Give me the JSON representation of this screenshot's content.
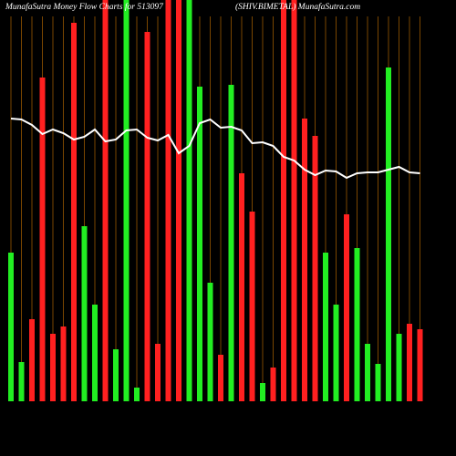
{
  "chart_data": {
    "type": "bar",
    "title": "MunafaSutra  Money Flow  Charts for 513097",
    "subtitle": "(SHIV.BIMETAL)  MunafaSutra.com",
    "ylim": [
      0,
      440
    ],
    "values": [
      163,
      43,
      90,
      355,
      74,
      82,
      415,
      192,
      106,
      440,
      57,
      440,
      15,
      405,
      63,
      440,
      440,
      440,
      345,
      130,
      51,
      347,
      250,
      208,
      20,
      37,
      440,
      440,
      310,
      291,
      163,
      106,
      205,
      168,
      63,
      41,
      366,
      74,
      85,
      79
    ],
    "colors": [
      "#22ee22",
      "#22ee22",
      "#ff2020",
      "#ff2020",
      "#ff2020",
      "#ff2020",
      "#ff2020",
      "#22ee22",
      "#22ee22",
      "#ff2020",
      "#22ee22",
      "#22ee22",
      "#22ee22",
      "#ff2020",
      "#ff2020",
      "#ff2020",
      "#ff2020",
      "#22ee22",
      "#22ee22",
      "#22ee22",
      "#ff2020",
      "#22ee22",
      "#ff2020",
      "#ff2020",
      "#22ee22",
      "#ff2020",
      "#ff2020",
      "#ff2020",
      "#ff2020",
      "#ff2020",
      "#22ee22",
      "#22ee22",
      "#ff2020",
      "#22ee22",
      "#22ee22",
      "#22ee22",
      "#22ee22",
      "#22ee22",
      "#ff2020",
      "#ff2020"
    ],
    "line": {
      "color": "#ffffff",
      "values": [
        310,
        309,
        303,
        293,
        298,
        294,
        287,
        290,
        298,
        285,
        287,
        297,
        298,
        289,
        286,
        292,
        272,
        280,
        305,
        309,
        300,
        301,
        297,
        283,
        284,
        280,
        268,
        264,
        254,
        248,
        253,
        252,
        245,
        250,
        251,
        251,
        254,
        257,
        251,
        250
      ]
    },
    "grid_color": "#7a4600"
  }
}
